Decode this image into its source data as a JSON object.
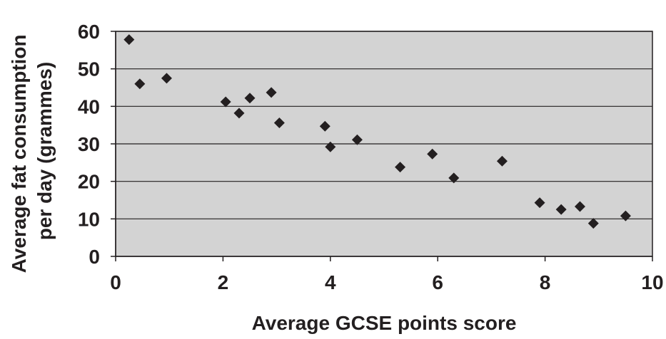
{
  "chart_data": {
    "type": "scatter",
    "title": "",
    "xlabel": "Average GCSE points score",
    "ylabel_lines": [
      "Average fat consumption",
      "per day (grammes)"
    ],
    "xlim": [
      0,
      10
    ],
    "ylim": [
      0,
      60
    ],
    "x_ticks": [
      0,
      2,
      4,
      6,
      8,
      10
    ],
    "y_ticks": [
      0,
      10,
      20,
      30,
      40,
      50,
      60
    ],
    "grid": "horizontal",
    "legend": "none",
    "colors": {
      "plot_background": "#d3d3d3",
      "marker": "#231f20",
      "gridline": "#231f20"
    },
    "marker_shape": "diamond",
    "points": [
      {
        "x": 0.25,
        "y": 57.8
      },
      {
        "x": 0.45,
        "y": 46.0
      },
      {
        "x": 0.95,
        "y": 47.5
      },
      {
        "x": 2.05,
        "y": 41.2
      },
      {
        "x": 2.3,
        "y": 38.2
      },
      {
        "x": 2.5,
        "y": 42.2
      },
      {
        "x": 2.9,
        "y": 43.7
      },
      {
        "x": 3.05,
        "y": 35.6
      },
      {
        "x": 3.9,
        "y": 34.7
      },
      {
        "x": 4.0,
        "y": 29.2
      },
      {
        "x": 4.5,
        "y": 31.1
      },
      {
        "x": 5.3,
        "y": 23.8
      },
      {
        "x": 5.9,
        "y": 27.3
      },
      {
        "x": 6.3,
        "y": 20.9
      },
      {
        "x": 7.2,
        "y": 25.4
      },
      {
        "x": 7.9,
        "y": 14.3
      },
      {
        "x": 8.3,
        "y": 12.5
      },
      {
        "x": 8.65,
        "y": 13.3
      },
      {
        "x": 8.9,
        "y": 8.8
      },
      {
        "x": 9.5,
        "y": 10.8
      }
    ]
  }
}
